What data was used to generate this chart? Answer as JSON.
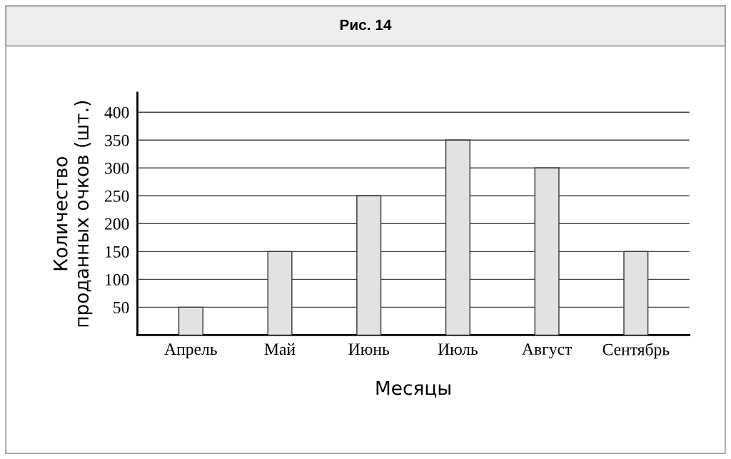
{
  "chart_data": {
    "type": "bar",
    "title": "Рис. 14",
    "xlabel": "Месяцы",
    "ylabel": "Количество\nпроданных очков (шт.)",
    "categories": [
      "Апрель",
      "Май",
      "Июнь",
      "Июль",
      "Август",
      "Сентябрь"
    ],
    "values": [
      50,
      150,
      250,
      350,
      300,
      150
    ],
    "color": "#e2e2e2",
    "ylim": [
      0,
      435
    ],
    "yticks": [
      50,
      100,
      150,
      200,
      250,
      300,
      350,
      400
    ],
    "grid": "y"
  }
}
